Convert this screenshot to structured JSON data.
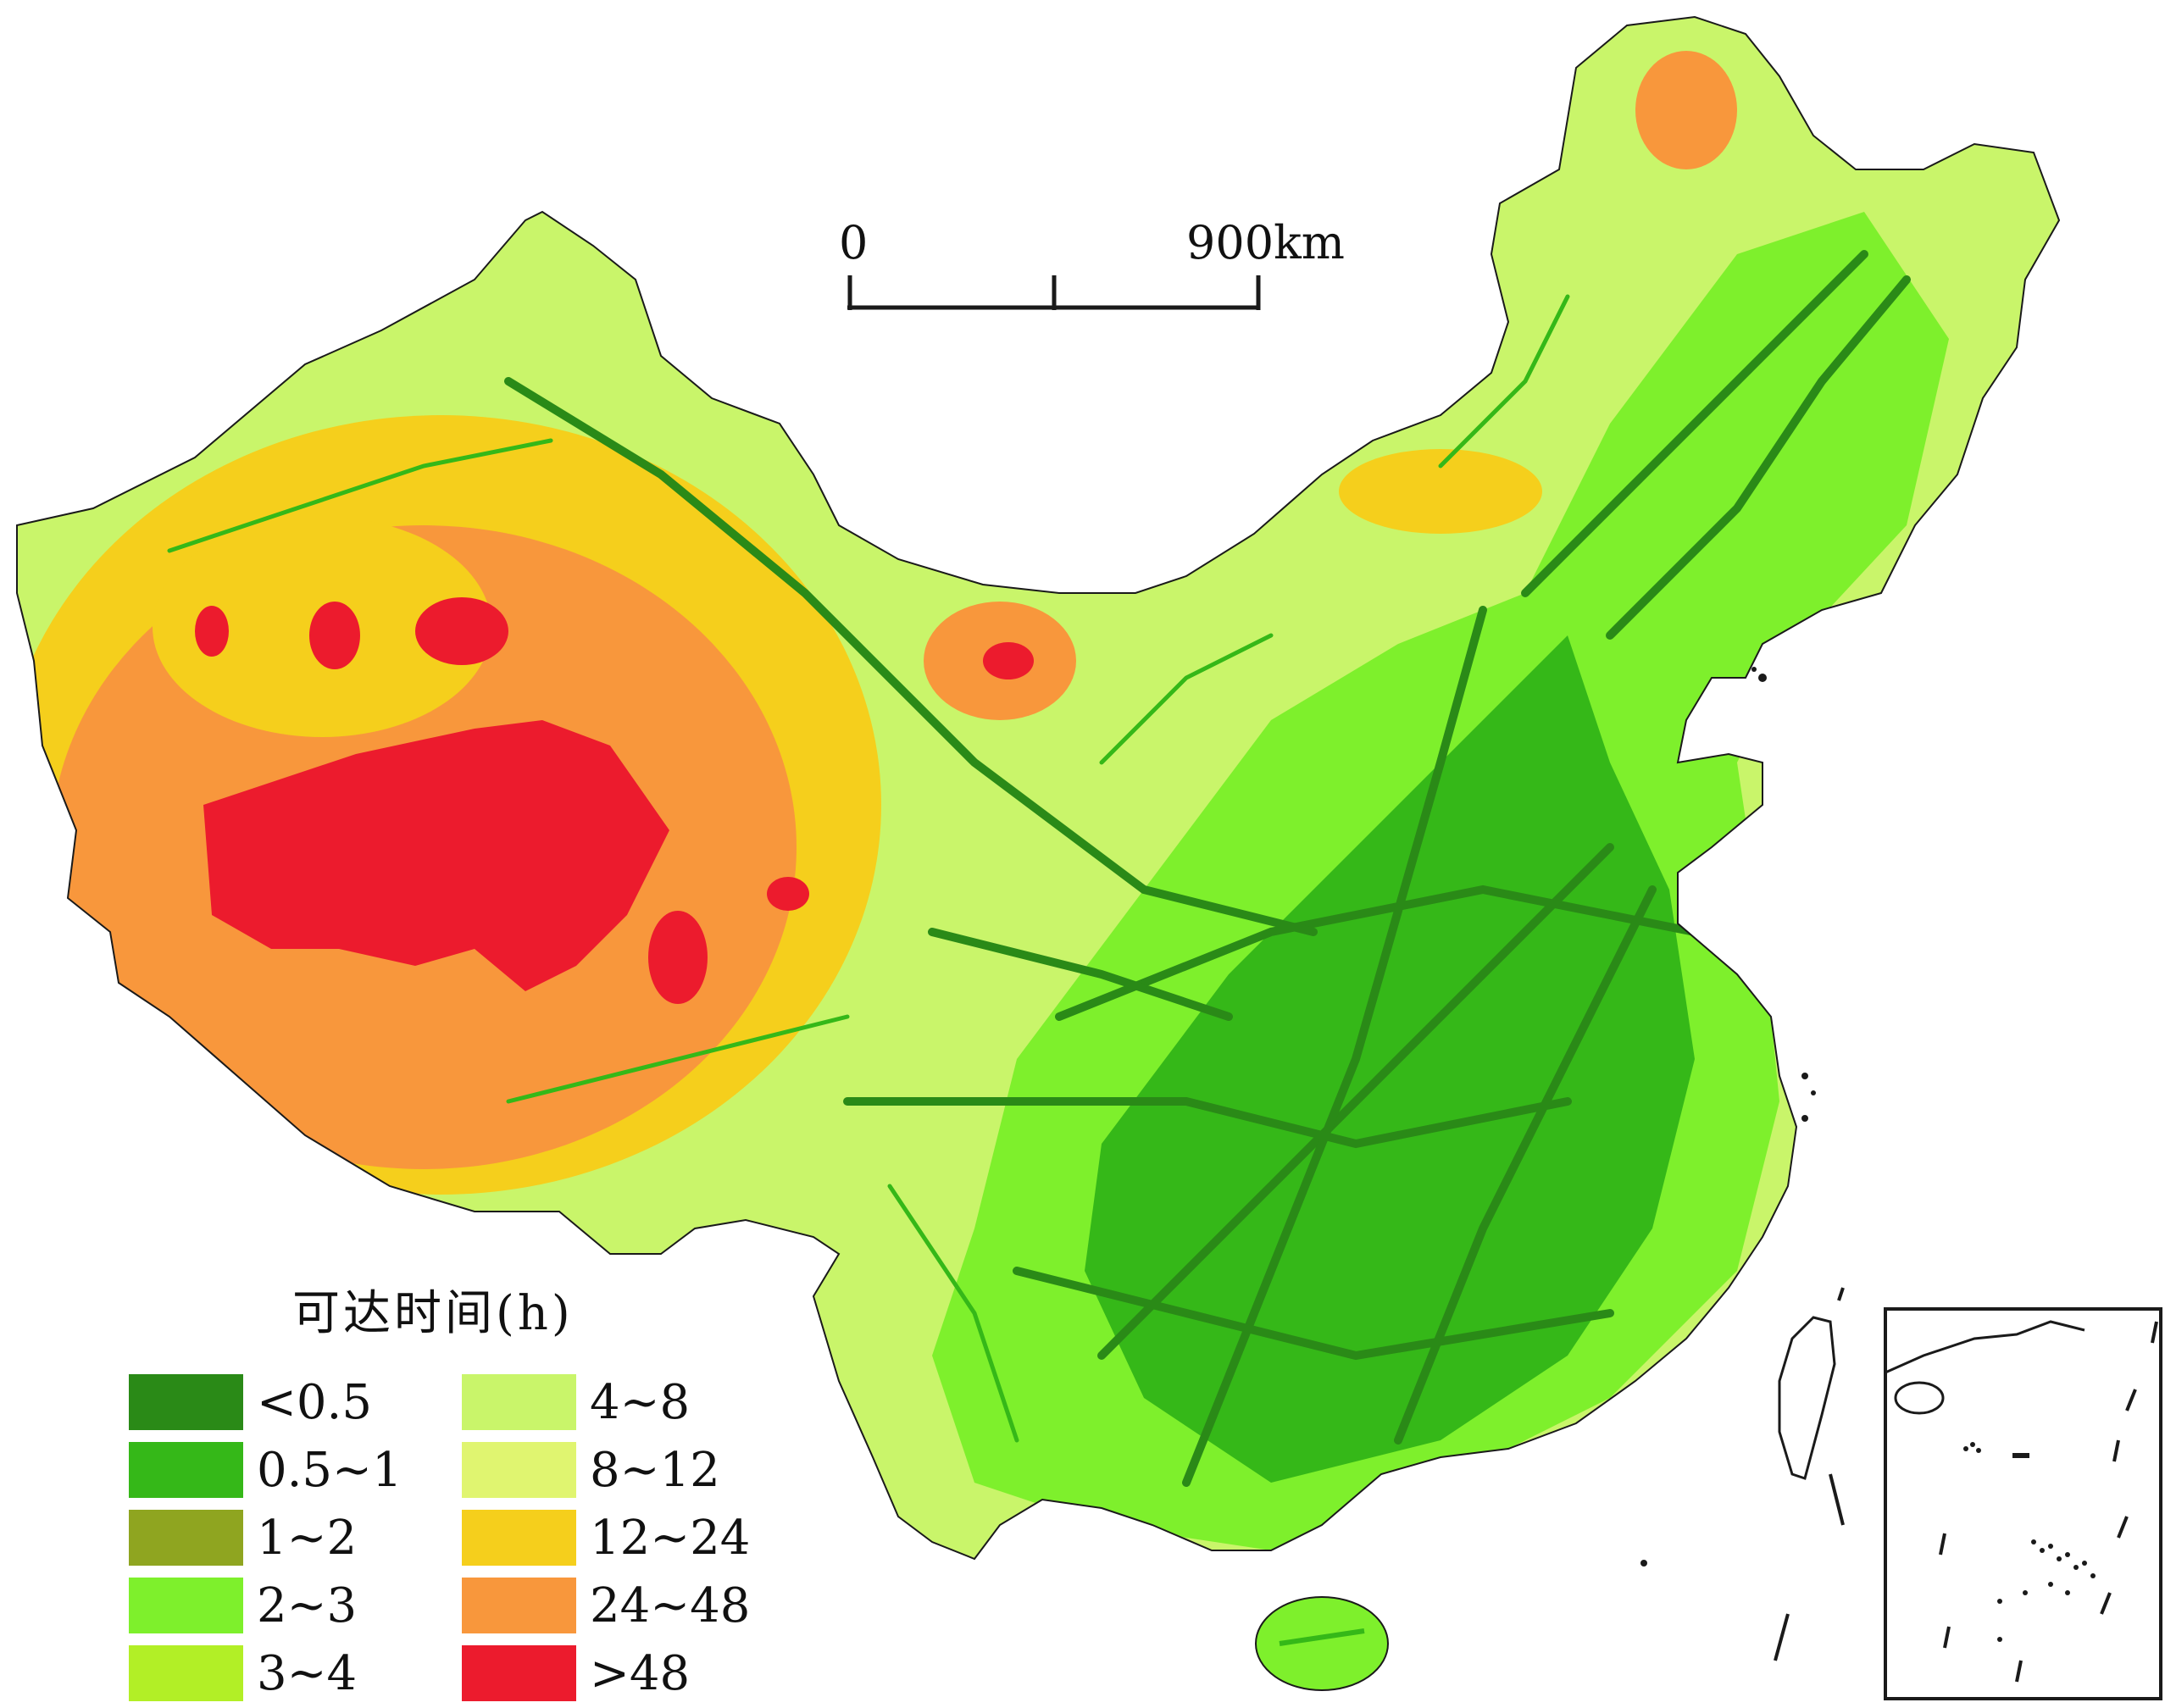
{
  "scale_bar": {
    "start_label": "0",
    "end_label": "900km"
  },
  "legend": {
    "title": "可达时间(h)",
    "columns": [
      [
        {
          "label": "<0.5",
          "color": "#2a8a17"
        },
        {
          "label": "0.5~1",
          "color": "#35b818"
        },
        {
          "label": "1~2",
          "color": "#8fa520"
        },
        {
          "label": "2~3",
          "color": "#7ef02c"
        },
        {
          "label": "3~4",
          "color": "#b2ef26"
        }
      ],
      [
        {
          "label": "4~8",
          "color": "#c9f56a"
        },
        {
          "label": "8~12",
          "color": "#e0f570"
        },
        {
          "label": "12~24",
          "color": "#f5cf1c"
        },
        {
          "label": "24~48",
          "color": "#f8973c"
        },
        {
          "label": ">48",
          "color": "#ec1b2d"
        }
      ]
    ]
  }
}
